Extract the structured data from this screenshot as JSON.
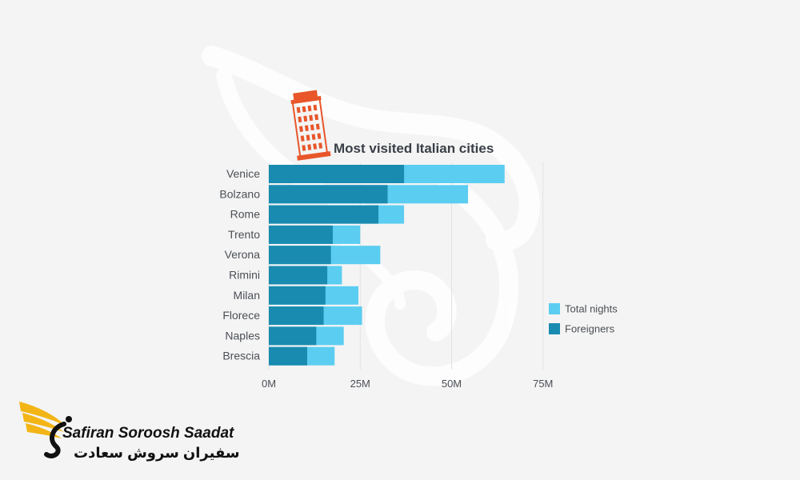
{
  "chart_data": {
    "type": "bar",
    "orientation": "horizontal",
    "title": "Most visited Italian cities",
    "categories": [
      "Venice",
      "Bolzano",
      "Rome",
      "Trento",
      "Verona",
      "Rimini",
      "Milan",
      "Florece",
      "Naples",
      "Brescia"
    ],
    "series": [
      {
        "name": "Total nights",
        "values": [
          64.5,
          54.5,
          37,
          25,
          30.5,
          20,
          24.5,
          25.5,
          20.5,
          18
        ],
        "color": "#5bcdf1"
      },
      {
        "name": "Foreigners",
        "values": [
          37,
          32.5,
          30,
          17.5,
          17,
          16,
          15.5,
          15,
          13,
          10.5
        ],
        "color": "#1a8bb0"
      }
    ],
    "xaxis": {
      "ticks": [
        0,
        25,
        50,
        75
      ],
      "tick_labels": [
        "0M",
        "25M",
        "50M",
        "75M"
      ],
      "range": [
        0,
        75
      ]
    },
    "legend_position": "right",
    "grid": "vertical"
  },
  "legend": {
    "total_nights": "Total nights",
    "foreigners": "Foreigners"
  },
  "logo": {
    "english": "Safiran Soroosh Saadat",
    "persian": "سفیران سروش سعادت"
  },
  "colors": {
    "total_nights": "#5bcdf1",
    "foreigners": "#1a8bb0",
    "pisa_tower": "#e8562a"
  },
  "icons": {
    "title_icon": "leaning-tower-of-pisa-icon",
    "logo_icon": "golden-wing-icon"
  }
}
